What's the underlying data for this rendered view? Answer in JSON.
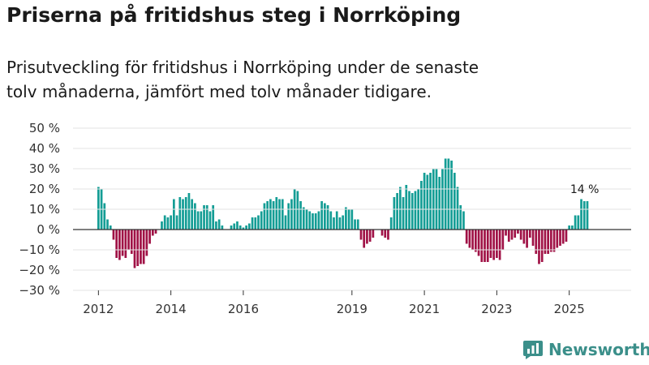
{
  "header": {
    "title": "Priserna på fritidshus steg i Norrköping",
    "subtitle": "Prisutveckling för fritidshus i Norrköping under de senaste tolv månaderna, jämfört med tolv månader tidigare."
  },
  "brand": {
    "name": "Newsworthy",
    "logo_icon": "bar-chart-speech-bubble-icon",
    "color": "#3b8f8a"
  },
  "colors": {
    "positive": "#149d95",
    "negative": "#a01246",
    "grid": "#e3e3e3",
    "zero": "#333333"
  },
  "chart_data": {
    "type": "bar",
    "title": "Priserna på fritidshus steg i Norrköping",
    "xlabel": "",
    "ylabel": "",
    "ylim": [
      -30,
      50
    ],
    "yticks": [
      50,
      40,
      30,
      20,
      10,
      0,
      -10,
      -20,
      -30
    ],
    "ytick_labels": [
      "50 %",
      "40 %",
      "30 %",
      "20 %",
      "10 %",
      "0 %",
      "−10 %",
      "−20 %",
      "−30 %"
    ],
    "x_start": {
      "year": 2012,
      "month": 1
    },
    "x_ticks": [
      {
        "label": "2012",
        "year": 2012
      },
      {
        "label": "2014",
        "year": 2014
      },
      {
        "label": "2016",
        "year": 2016
      },
      {
        "label": "2019",
        "year": 2019
      },
      {
        "label": "2021",
        "year": 2021
      },
      {
        "label": "2023",
        "year": 2023
      },
      {
        "label": "2025",
        "year": 2025
      }
    ],
    "annotation": {
      "text": "14 %",
      "value": 14
    },
    "values": [
      21,
      20,
      13,
      5,
      2,
      -5,
      -14,
      -15,
      -13,
      -14,
      -10,
      -12,
      -19,
      -18,
      -17,
      -17,
      -13,
      -7,
      -3,
      -2,
      0,
      4,
      7,
      6,
      7,
      15,
      7,
      16,
      15,
      16,
      18,
      15,
      13,
      9,
      9,
      12,
      12,
      9,
      12,
      4,
      5,
      2,
      null,
      0,
      2,
      3,
      4,
      2,
      1,
      2,
      3,
      6,
      6,
      7,
      9,
      13,
      14,
      15,
      14,
      16,
      15,
      15,
      7,
      13,
      15,
      20,
      19,
      14,
      11,
      10,
      9,
      8,
      8,
      9,
      14,
      13,
      12,
      9,
      6,
      9,
      6,
      7,
      11,
      10,
      10,
      5,
      5,
      -5,
      -9,
      -7,
      -6,
      -4,
      null,
      0,
      -3,
      -4,
      -5,
      6,
      16,
      18,
      21,
      16,
      22,
      19,
      18,
      19,
      20,
      24,
      28,
      27,
      28,
      30,
      30,
      26,
      30,
      35,
      35,
      34,
      28,
      21,
      12,
      9,
      -7,
      -9,
      -10,
      -11,
      -13,
      -16,
      -16,
      -16,
      -14,
      -15,
      -14,
      -15,
      -10,
      -3,
      -6,
      -5,
      -4,
      -2,
      -5,
      -7,
      -9,
      -4,
      -8,
      -12,
      -17,
      -16,
      -12,
      -12,
      -11,
      -11,
      -9,
      -8,
      -7,
      -6,
      2,
      2,
      7,
      7,
      15,
      14,
      14
    ]
  }
}
